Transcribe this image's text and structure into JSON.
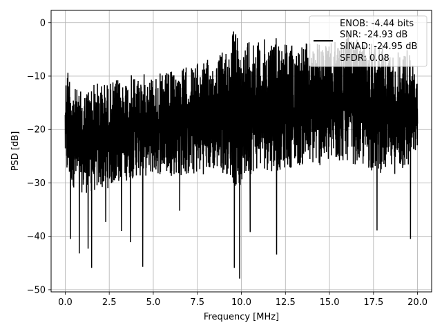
{
  "chart_data": {
    "type": "line",
    "title": "",
    "xlabel": "Frequency [MHz]",
    "ylabel": "PSD [dB]",
    "xlim": [
      -0.8,
      20.8
    ],
    "ylim": [
      -50.4,
      2.3
    ],
    "xticks": [
      0.0,
      2.5,
      5.0,
      7.5,
      10.0,
      12.5,
      15.0,
      17.5,
      20.0
    ],
    "xtick_labels": [
      "0.0",
      "2.5",
      "5.0",
      "7.5",
      "10.0",
      "12.5",
      "15.0",
      "17.5",
      "20.0"
    ],
    "yticks": [
      0,
      -10,
      -20,
      -30,
      -40,
      -50
    ],
    "ytick_labels": [
      "0",
      "−10",
      "−20",
      "−30",
      "−40",
      "−50"
    ],
    "grid": true,
    "legend_position": "top-right",
    "legend_lines": [
      "ENOB: -4.44 bits",
      "SNR: -24.93 dB",
      "SINAD: -24.95 dB",
      "SFDR: 0.08"
    ],
    "series": [
      {
        "color": "#000000",
        "envelope": {
          "x": [
            0.0,
            0.1,
            0.5,
            1.0,
            1.5,
            2.5,
            4.0,
            5.5,
            7.0,
            8.5,
            9.3,
            9.6,
            10.0,
            10.5,
            11.0,
            12.0,
            13.0,
            14.0,
            15.0,
            16.0,
            17.0,
            17.5,
            18.5,
            19.5,
            20.0
          ],
          "upper": [
            -12,
            -7,
            -12,
            -13,
            -11,
            -11,
            -9.5,
            -9.5,
            -8,
            -6.5,
            -4,
            -0.3,
            -5.5,
            -1,
            -3.5,
            -2,
            -4,
            -3.5,
            -4,
            -2,
            -4,
            -2.5,
            -5.5,
            -4.5,
            -11
          ],
          "lower": [
            -26,
            -30,
            -31,
            -32,
            -32,
            -31,
            -29,
            -28.5,
            -29,
            -28,
            -28.5,
            -31,
            -31,
            -28.5,
            -27.5,
            -28,
            -27,
            -27,
            -27,
            -26,
            -27.5,
            -28,
            -28.5,
            -28,
            -24
          ]
        },
        "dips": [
          {
            "x": 0.3,
            "y": -40.5
          },
          {
            "x": 0.8,
            "y": -43.2
          },
          {
            "x": 1.3,
            "y": -42.3
          },
          {
            "x": 1.5,
            "y": -45.9
          },
          {
            "x": 2.3,
            "y": -37.3
          },
          {
            "x": 3.2,
            "y": -39.0
          },
          {
            "x": 3.7,
            "y": -41.1
          },
          {
            "x": 4.4,
            "y": -45.7
          },
          {
            "x": 6.5,
            "y": -35.2
          },
          {
            "x": 9.6,
            "y": -45.9
          },
          {
            "x": 9.9,
            "y": -47.9
          },
          {
            "x": 10.5,
            "y": -39.2
          },
          {
            "x": 12.0,
            "y": -43.4
          },
          {
            "x": 17.7,
            "y": -38.9
          },
          {
            "x": 19.6,
            "y": -40.5
          }
        ]
      }
    ]
  }
}
